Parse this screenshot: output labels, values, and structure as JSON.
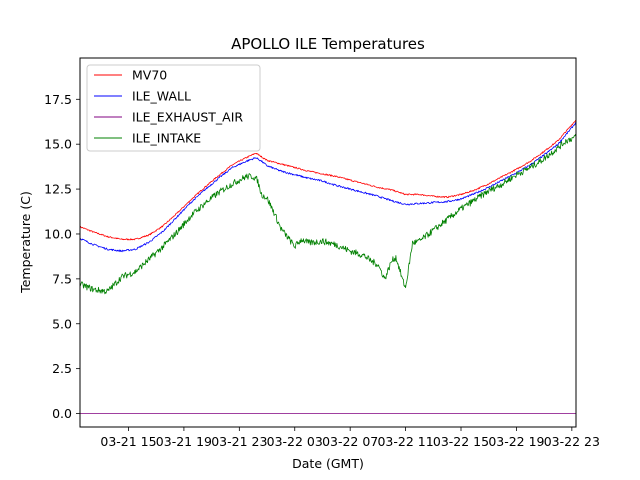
{
  "chart_data": {
    "type": "line",
    "title": "APOLLO ILE Temperatures",
    "xlabel": "Date (GMT)",
    "ylabel": "Temperature (C)",
    "xlim": [
      11.5,
      47.3
    ],
    "ylim": [
      -0.75,
      19.8
    ],
    "x_unit": "hours since 03-21 00:00 GMT",
    "xticks": [
      {
        "value": 15,
        "label": "03-21 15"
      },
      {
        "value": 19,
        "label": "03-21 19"
      },
      {
        "value": 23,
        "label": "03-21 23"
      },
      {
        "value": 27,
        "label": "03-22 03"
      },
      {
        "value": 31,
        "label": "03-22 07"
      },
      {
        "value": 35,
        "label": "03-22 11"
      },
      {
        "value": 39,
        "label": "03-22 15"
      },
      {
        "value": 43,
        "label": "03-22 19"
      },
      {
        "value": 47,
        "label": "03-22 23"
      }
    ],
    "yticks": [
      {
        "value": 0.0,
        "label": "0.0"
      },
      {
        "value": 2.5,
        "label": "2.5"
      },
      {
        "value": 5.0,
        "label": "5.0"
      },
      {
        "value": 7.5,
        "label": "7.5"
      },
      {
        "value": 10.0,
        "label": "10.0"
      },
      {
        "value": 12.5,
        "label": "12.5"
      },
      {
        "value": 15.0,
        "label": "15.0"
      },
      {
        "value": 17.5,
        "label": "17.5"
      }
    ],
    "legend_position": "top-left",
    "grid": false,
    "series": [
      {
        "name": "MV70",
        "color": "#ff0000",
        "x": [
          11.5,
          12.5,
          13.5,
          14.5,
          15.5,
          16.5,
          17.5,
          18.5,
          19.5,
          20.5,
          21.5,
          22.5,
          23.5,
          24.2,
          24.6,
          25.0,
          26.0,
          27.0,
          28.0,
          29.0,
          30.0,
          31.0,
          32.0,
          33.0,
          34.0,
          35.0,
          36.0,
          37.0,
          38.0,
          39.0,
          40.0,
          41.0,
          42.0,
          43.0,
          44.0,
          45.0,
          46.0,
          47.3
        ],
        "y": [
          10.4,
          10.1,
          9.85,
          9.7,
          9.7,
          9.95,
          10.45,
          11.15,
          11.9,
          12.6,
          13.25,
          13.85,
          14.25,
          14.5,
          14.3,
          14.1,
          13.9,
          13.7,
          13.5,
          13.35,
          13.2,
          13.0,
          12.8,
          12.6,
          12.45,
          12.2,
          12.2,
          12.1,
          12.05,
          12.2,
          12.45,
          12.8,
          13.2,
          13.6,
          14.05,
          14.6,
          15.2,
          16.35
        ]
      },
      {
        "name": "ILE_WALL",
        "color": "#0000ff",
        "x": [
          11.5,
          12.5,
          13.5,
          14.5,
          15.5,
          16.5,
          17.5,
          18.5,
          19.5,
          20.5,
          21.5,
          22.5,
          23.5,
          24.2,
          24.6,
          25.0,
          26.0,
          27.0,
          28.0,
          29.0,
          30.0,
          31.0,
          32.0,
          33.0,
          34.0,
          35.0,
          36.0,
          37.0,
          38.0,
          39.0,
          40.0,
          41.0,
          42.0,
          43.0,
          44.0,
          45.0,
          46.0,
          47.3
        ],
        "y": [
          9.75,
          9.4,
          9.15,
          9.05,
          9.15,
          9.55,
          10.15,
          10.95,
          11.75,
          12.45,
          13.1,
          13.7,
          14.05,
          14.25,
          14.05,
          13.8,
          13.5,
          13.3,
          13.1,
          12.95,
          12.7,
          12.5,
          12.3,
          12.1,
          11.85,
          11.65,
          11.7,
          11.75,
          11.8,
          11.95,
          12.25,
          12.6,
          13.0,
          13.4,
          13.85,
          14.4,
          15.0,
          16.2
        ]
      },
      {
        "name": "ILE_EXHAUST_AIR",
        "color": "#800080",
        "x": [
          11.5,
          47.3
        ],
        "y": [
          0.0,
          0.0
        ]
      },
      {
        "name": "ILE_INTAKE",
        "color": "#008000",
        "x": [
          11.5,
          12.5,
          13.5,
          14.0,
          14.5,
          15.5,
          16.5,
          17.5,
          18.5,
          19.5,
          20.5,
          21.5,
          22.5,
          23.5,
          24.0,
          24.3,
          24.6,
          25.0,
          25.5,
          26.0,
          26.5,
          27.0,
          27.5,
          28.0,
          29.0,
          30.0,
          31.0,
          32.0,
          32.5,
          33.0,
          33.5,
          34.0,
          34.3,
          34.5,
          34.8,
          35.0,
          35.5,
          36.0,
          37.0,
          38.0,
          39.0,
          40.0,
          41.0,
          42.0,
          43.0,
          44.0,
          45.0,
          46.0,
          46.6,
          47.3
        ],
        "y": [
          7.2,
          6.9,
          6.8,
          7.2,
          7.6,
          7.9,
          8.6,
          9.3,
          10.1,
          11.0,
          11.7,
          12.3,
          12.8,
          13.2,
          13.2,
          13.0,
          12.2,
          12.0,
          11.2,
          10.3,
          9.8,
          9.3,
          9.7,
          9.5,
          9.6,
          9.4,
          9.05,
          8.8,
          8.5,
          8.3,
          7.5,
          8.5,
          8.7,
          8.2,
          7.4,
          7.0,
          9.5,
          9.6,
          10.2,
          10.8,
          11.4,
          11.9,
          12.4,
          12.8,
          13.3,
          13.7,
          14.2,
          14.8,
          15.2,
          15.4
        ]
      }
    ]
  }
}
